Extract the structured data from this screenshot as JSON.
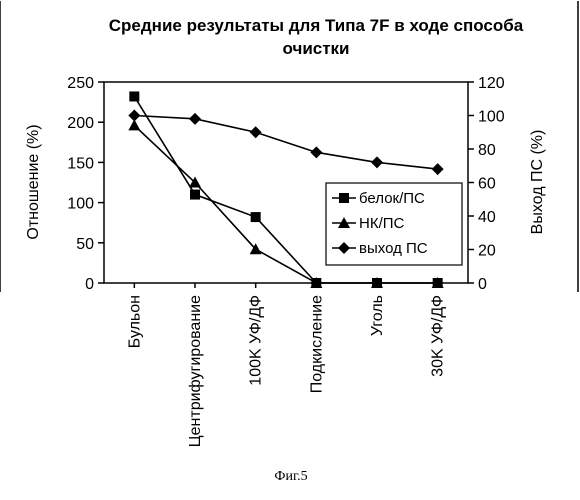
{
  "figure": {
    "caption": "Фиг.5"
  },
  "chart_data": {
    "type": "line",
    "title_line1": "Средние результаты для Типа 7F в ходе способа",
    "title_line2": "очистки",
    "categories": [
      "Бульон",
      "Центрифугирование",
      "100K УФ/ДФ",
      "Подкисление",
      "Уголь",
      "30K УФ/ДФ"
    ],
    "ylabel_left": "Отношение (%)",
    "ylabel_right": "Выход ПС (%)",
    "ylim_left": [
      0,
      250
    ],
    "yticks_left": [
      "0",
      "50",
      "100",
      "150",
      "200",
      "250"
    ],
    "ylim_right": [
      0,
      120
    ],
    "yticks_right": [
      "0",
      "20",
      "40",
      "60",
      "80",
      "100",
      "120"
    ],
    "legend_position": "right",
    "series": [
      {
        "name": "белок/ПС",
        "marker": "square",
        "axis": "left",
        "values": [
          232,
          110,
          82,
          0,
          0,
          0
        ]
      },
      {
        "name": "НК/ПС",
        "marker": "triangle",
        "axis": "left",
        "values": [
          196,
          125,
          42,
          0,
          0,
          0
        ]
      },
      {
        "name": "выход ПС",
        "marker": "diamond",
        "axis": "right",
        "values": [
          100,
          98,
          90,
          78,
          72,
          68
        ]
      }
    ],
    "colors": {
      "line": "#000000",
      "background": "#ffffff"
    }
  }
}
